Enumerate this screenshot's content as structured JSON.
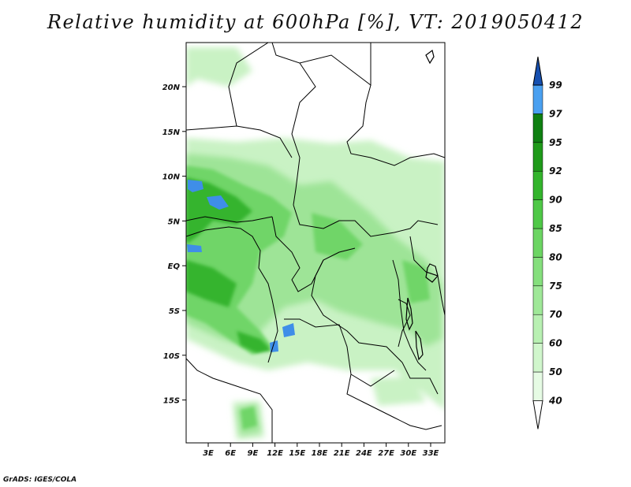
{
  "title": "Relative humidity at 600hPa [%], VT: 2019050412",
  "credit": "GrADS: IGES/COLA",
  "map": {
    "lat_labels": [
      "20N",
      "15N",
      "10N",
      "5N",
      "EQ",
      "5S",
      "10S",
      "15S"
    ],
    "lon_labels": [
      "3E",
      "6E",
      "9E",
      "12E",
      "15E",
      "18E",
      "21E",
      "24E",
      "27E",
      "30E",
      "33E"
    ]
  },
  "colorbar": {
    "labels": [
      "40",
      "50",
      "60",
      "70",
      "75",
      "80",
      "85",
      "90",
      "92",
      "95",
      "97",
      "99"
    ],
    "colors": [
      "#ffffff",
      "#e6fbe4",
      "#d0f6cc",
      "#b8f0b2",
      "#9fe898",
      "#85df7d",
      "#6cd563",
      "#4fc847",
      "#33b42c",
      "#1f9a1a",
      "#0f8012",
      "#4aa0f0",
      "#2478d8",
      "#1650b0"
    ]
  }
}
